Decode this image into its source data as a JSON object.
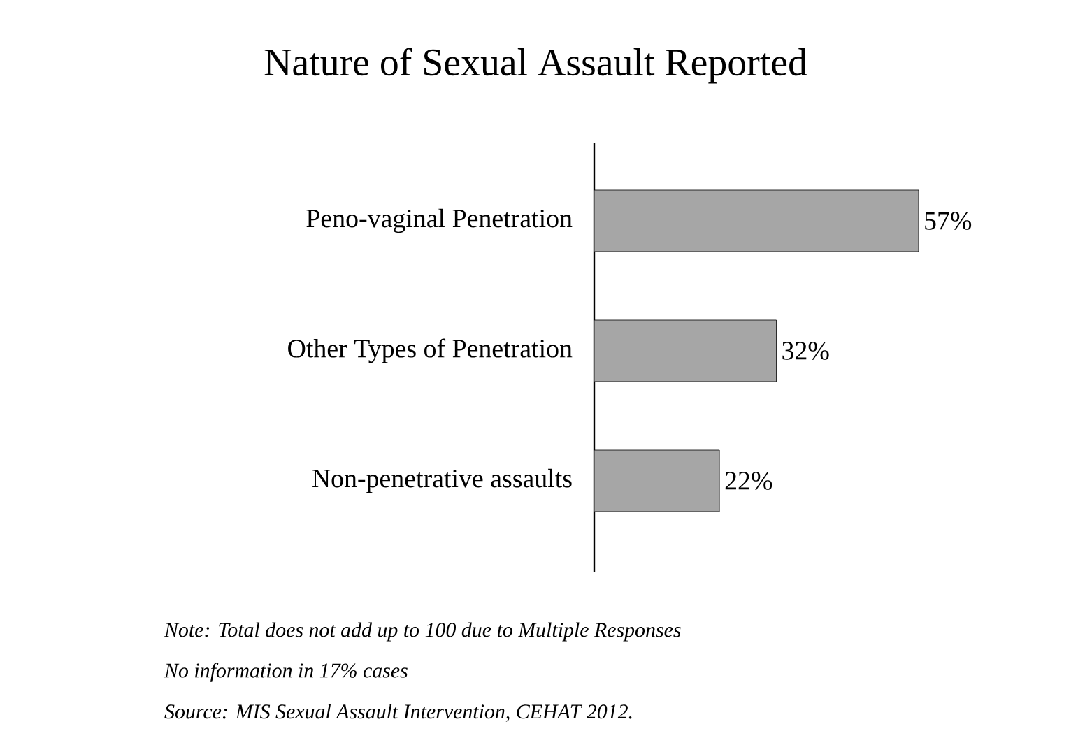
{
  "chart_data": {
    "type": "bar",
    "orientation": "horizontal",
    "title": "Nature of Sexual Assault Reported",
    "categories": [
      "Peno-vaginal Penetration",
      "Other Types of Penetration",
      "Non-penetrative assaults"
    ],
    "values": [
      57,
      32,
      22
    ],
    "value_labels": [
      "57%",
      "32%",
      "22%"
    ],
    "color": "#a6a6a6",
    "annotations": [
      "Note: Total does not add up to 100 due to Multiple Responses",
      "No information in 17% cases",
      "Source: MIS Sexual Assault Intervention, CEHAT 2012."
    ]
  }
}
